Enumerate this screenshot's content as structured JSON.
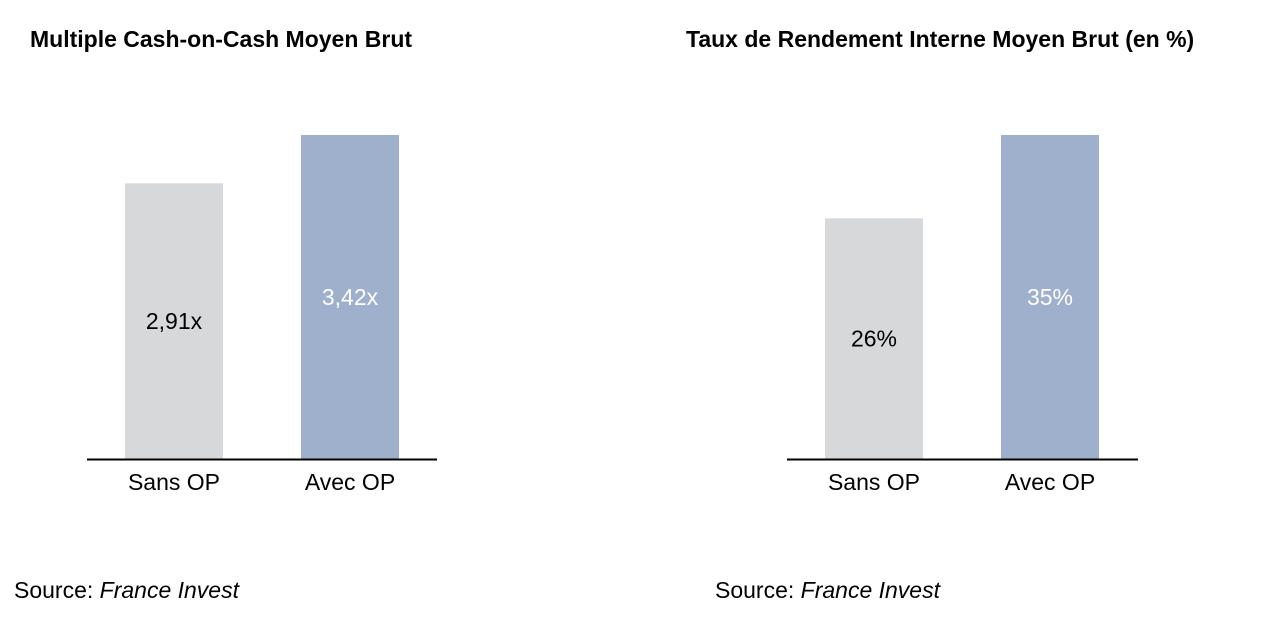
{
  "colors": {
    "sans_op": "#d7d8da",
    "avec_op": "#9eb0cc",
    "axis": "#000000"
  },
  "source": {
    "label": "Source:",
    "name": "France Invest"
  },
  "chart_data": [
    {
      "type": "bar",
      "title": "Multiple Cash-on-Cash Moyen Brut",
      "categories": [
        "Sans OP",
        "Avec OP"
      ],
      "values": [
        2.91,
        3.42
      ],
      "value_labels": [
        "2,91x",
        "3,42x"
      ],
      "ylim": [
        0,
        3.42
      ],
      "grid": false,
      "xlabel": "",
      "ylabel": ""
    },
    {
      "type": "bar",
      "title": "Taux de Rendement Interne Moyen Brut (en %)",
      "categories": [
        "Sans OP",
        "Avec OP"
      ],
      "values": [
        26,
        35
      ],
      "value_labels": [
        "26%",
        "35%"
      ],
      "ylim": [
        0,
        35
      ],
      "grid": false,
      "xlabel": "",
      "ylabel": ""
    }
  ]
}
